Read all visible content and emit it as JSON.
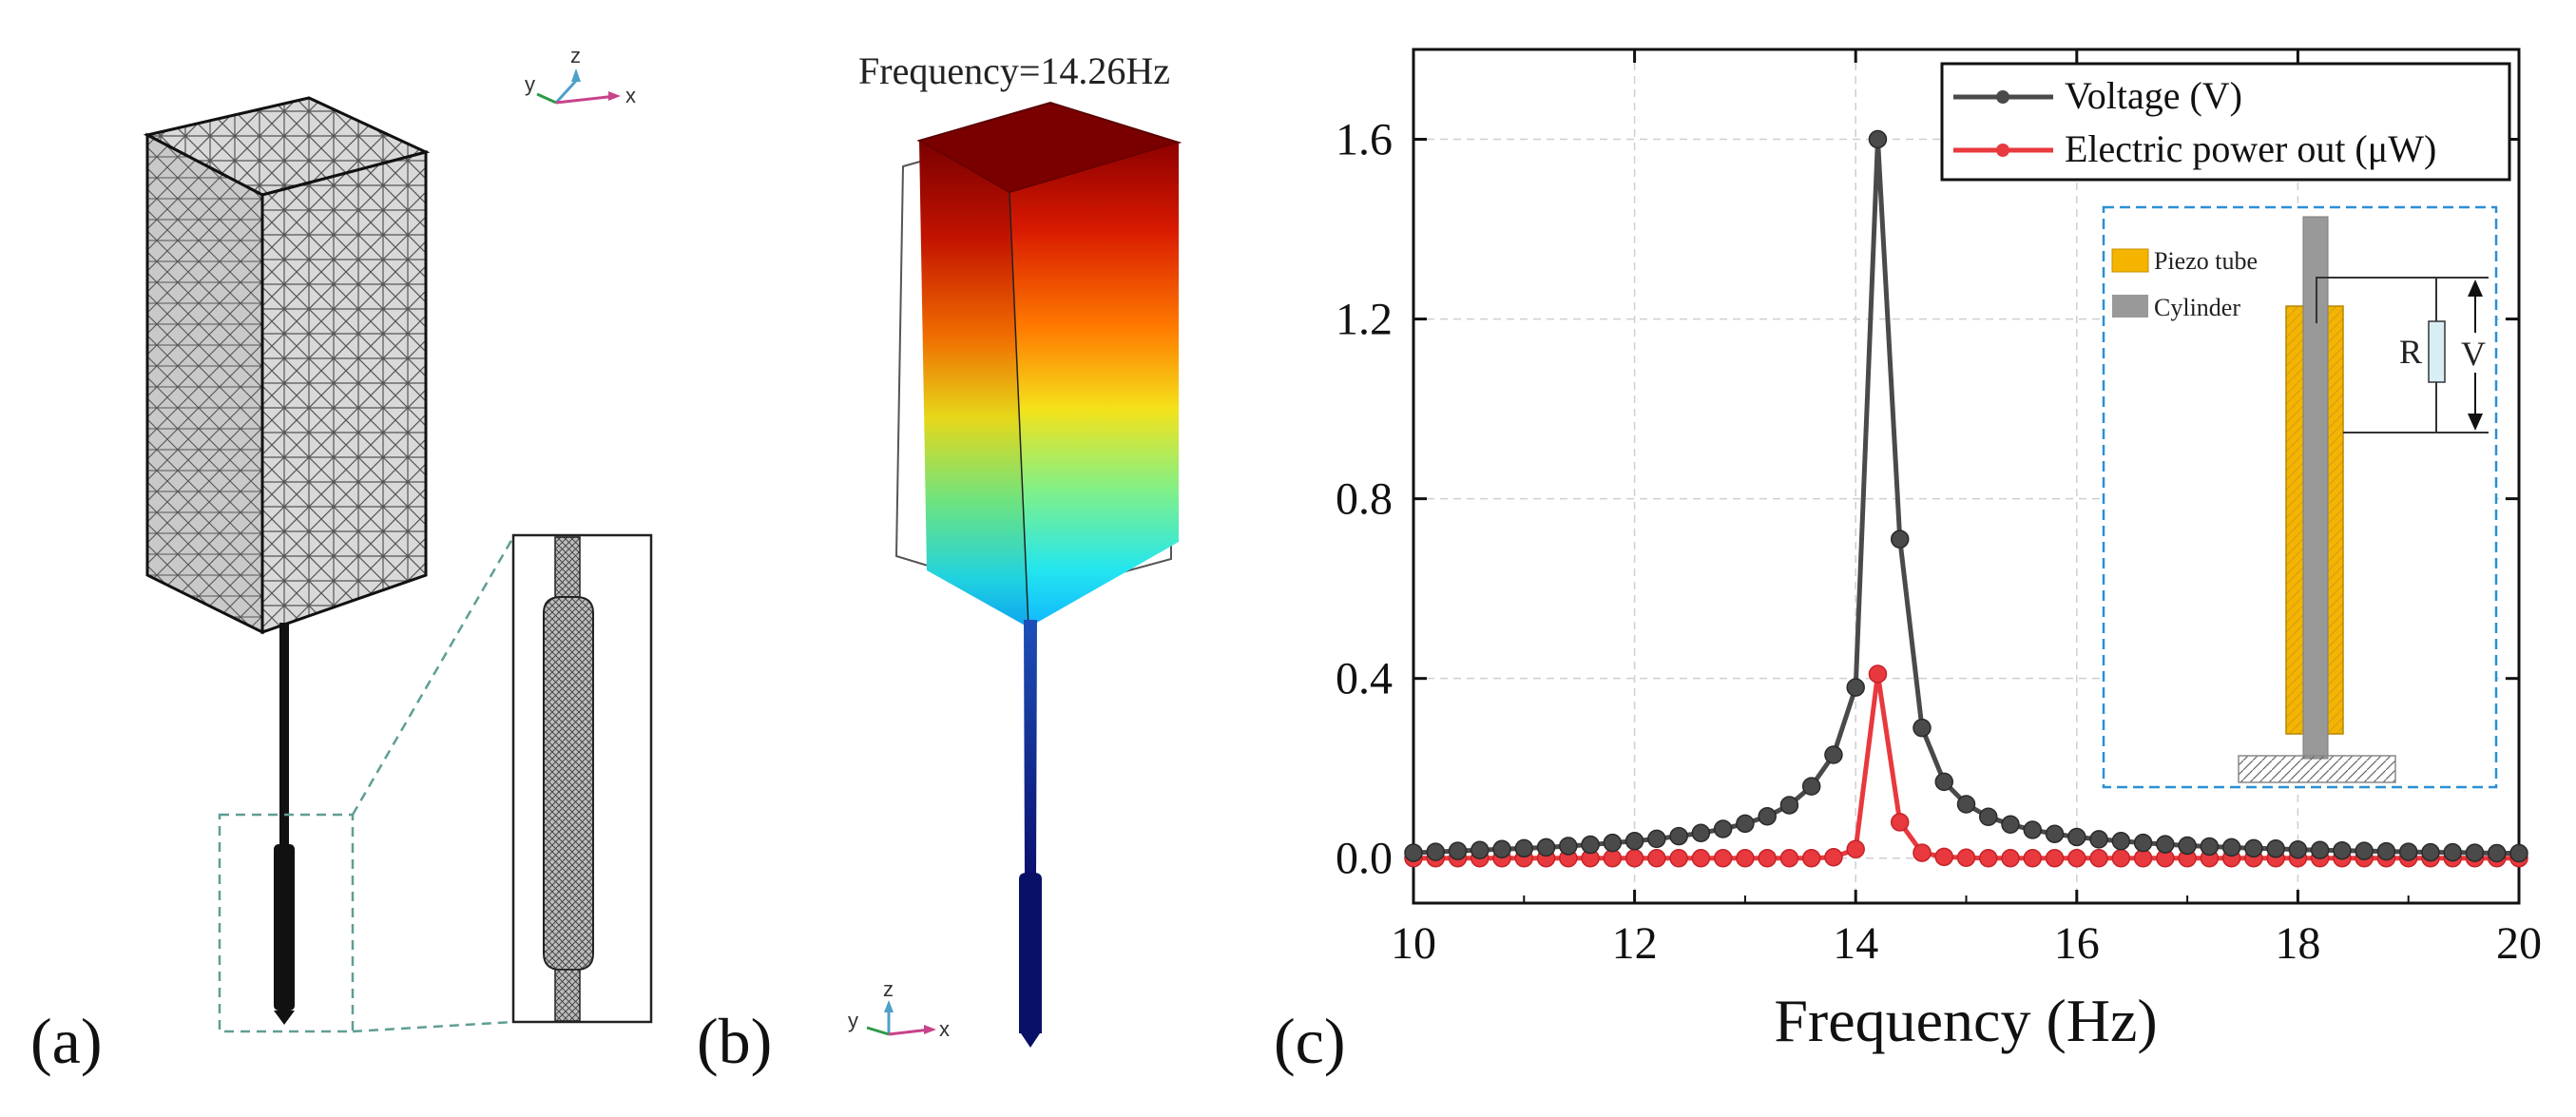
{
  "panels": {
    "a": {
      "label": "(a)",
      "axis": {
        "x": "x",
        "y": "y",
        "z": "z"
      }
    },
    "b": {
      "label": "(b)",
      "title": "Frequency=14.26Hz",
      "axis": {
        "x": "x",
        "y": "y",
        "z": "z"
      }
    },
    "c": {
      "label": "(c)"
    }
  },
  "inset": {
    "legend_piezo": "Piezo tube",
    "legend_cylinder": "Cylinder",
    "resistor": "R",
    "voltage": "V"
  },
  "colors": {
    "voltage": "#4a4a4a",
    "power": "#e8393e",
    "piezo": "#f5b400",
    "cylinder": "#999999",
    "inset_border": "#2b8fd6"
  },
  "chart_data": {
    "type": "line",
    "title": "",
    "xlabel": "Frequency (Hz)",
    "ylabel": "",
    "xlim": [
      10,
      20
    ],
    "ylim": [
      -0.1,
      1.8
    ],
    "xticks": [
      10,
      12,
      14,
      16,
      18,
      20
    ],
    "yticks": [
      "0.0",
      "0.4",
      "0.8",
      "1.2",
      "1.6"
    ],
    "grid": true,
    "legend_position": "top-right",
    "x": [
      10.0,
      10.2,
      10.4,
      10.6,
      10.8,
      11.0,
      11.2,
      11.4,
      11.6,
      11.8,
      12.0,
      12.2,
      12.4,
      12.6,
      12.8,
      13.0,
      13.2,
      13.4,
      13.6,
      13.8,
      14.0,
      14.2,
      14.4,
      14.6,
      14.8,
      15.0,
      15.2,
      15.4,
      15.6,
      15.8,
      16.0,
      16.2,
      16.4,
      16.6,
      16.8,
      17.0,
      17.2,
      17.4,
      17.6,
      17.8,
      18.0,
      18.2,
      18.4,
      18.6,
      18.8,
      19.0,
      19.2,
      19.4,
      19.6,
      19.8,
      20.0
    ],
    "series": [
      {
        "name": "Voltage (V)",
        "values": [
          0.012,
          0.014,
          0.016,
          0.018,
          0.02,
          0.022,
          0.024,
          0.027,
          0.03,
          0.034,
          0.038,
          0.043,
          0.049,
          0.056,
          0.065,
          0.077,
          0.093,
          0.118,
          0.16,
          0.23,
          0.38,
          1.6,
          0.71,
          0.29,
          0.17,
          0.12,
          0.092,
          0.075,
          0.063,
          0.054,
          0.047,
          0.042,
          0.038,
          0.034,
          0.031,
          0.028,
          0.026,
          0.024,
          0.022,
          0.021,
          0.019,
          0.018,
          0.017,
          0.016,
          0.015,
          0.014,
          0.013,
          0.013,
          0.012,
          0.011,
          0.011
        ]
      },
      {
        "name": "Electric power out (μW)",
        "values": [
          0,
          0,
          0,
          0,
          0,
          0,
          0,
          0,
          0,
          0,
          0,
          0,
          0,
          0,
          0,
          0,
          0,
          0,
          0,
          0.002,
          0.02,
          0.41,
          0.08,
          0.012,
          0.003,
          0.001,
          0,
          0,
          0,
          0,
          0,
          0,
          0,
          0,
          0,
          0,
          0,
          0,
          0,
          0,
          0,
          0,
          0,
          0,
          0,
          0,
          0,
          0,
          0,
          0,
          0
        ]
      }
    ]
  }
}
